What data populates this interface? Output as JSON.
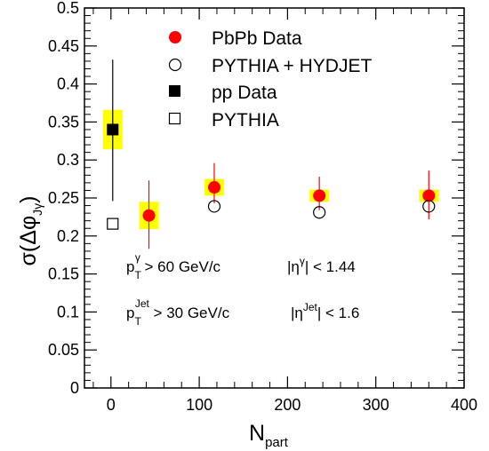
{
  "chart_data": {
    "type": "scatter",
    "xlabel": "N",
    "xlabel_sub": "part",
    "ylabel": "σ(Δφ",
    "ylabel_sub": "Jγ",
    "ylabel_close": ")",
    "xlim": [
      -30,
      400
    ],
    "ylim": [
      0,
      0.5
    ],
    "x_ticks": [
      0,
      100,
      200,
      300,
      400
    ],
    "y_ticks": [
      0,
      0.05,
      0.1,
      0.15,
      0.2,
      0.25,
      0.3,
      0.35,
      0.4,
      0.45,
      0.5
    ],
    "x_tick_labels": [
      "0",
      "100",
      "200",
      "300",
      "400"
    ],
    "y_tick_labels": [
      "0",
      "0.05",
      "0.1",
      "0.15",
      "0.2",
      "0.25",
      "0.3",
      "0.35",
      "0.4",
      "0.45",
      "0.5"
    ],
    "legend_position": "top",
    "legend": [
      {
        "marker": "filled-circle",
        "label": "PbPb Data"
      },
      {
        "marker": "open-circle",
        "label": "PYTHIA + HYDJET"
      },
      {
        "marker": "filled-square",
        "label": "pp Data"
      },
      {
        "marker": "open-square",
        "label": "PYTHIA"
      }
    ],
    "series": [
      {
        "name": "PbPb Data",
        "marker": "filled-circle",
        "color": "#ff0000",
        "points": [
          {
            "x": 43,
            "y": 0.227,
            "stat_lo": 0.183,
            "stat_hi": 0.273,
            "sys_half": 0.018
          },
          {
            "x": 117,
            "y": 0.264,
            "stat_lo": 0.243,
            "stat_hi": 0.296,
            "sys_half": 0.011
          },
          {
            "x": 236,
            "y": 0.253,
            "stat_lo": 0.234,
            "stat_hi": 0.278,
            "sys_half": 0.008
          },
          {
            "x": 360,
            "y": 0.253,
            "stat_lo": 0.222,
            "stat_hi": 0.286,
            "sys_half": 0.008
          }
        ]
      },
      {
        "name": "PYTHIA + HYDJET",
        "marker": "open-circle",
        "color": "#000000",
        "points": [
          {
            "x": 117,
            "y": 0.239
          },
          {
            "x": 236,
            "y": 0.231
          },
          {
            "x": 360,
            "y": 0.239
          }
        ]
      },
      {
        "name": "pp Data",
        "marker": "filled-square",
        "color": "#000000",
        "points": [
          {
            "x": 2,
            "y": 0.34,
            "stat_lo": 0.246,
            "stat_hi": 0.432,
            "sys_half": 0.026
          }
        ]
      },
      {
        "name": "PYTHIA",
        "marker": "open-square",
        "color": "#000000",
        "points": [
          {
            "x": 2,
            "y": 0.216
          }
        ]
      }
    ],
    "annotations": [
      {
        "line": 1,
        "prefix": "p",
        "sub": "T",
        "sup": "γ",
        "text": " > 60 GeV/c",
        "eta_label": "|η",
        "eta_sup": "γ",
        "eta_text": "| < 1.44"
      },
      {
        "line": 2,
        "prefix": "p",
        "sub": "T",
        "sup": "Jet",
        "text": " > 30 GeV/c",
        "eta_label": "|η",
        "eta_sup": "Jet",
        "eta_text": "| < 1.6"
      }
    ],
    "colors": {
      "sys_band": "#ffff00",
      "pbpb": "#ff0000",
      "frame": "#000000"
    }
  }
}
